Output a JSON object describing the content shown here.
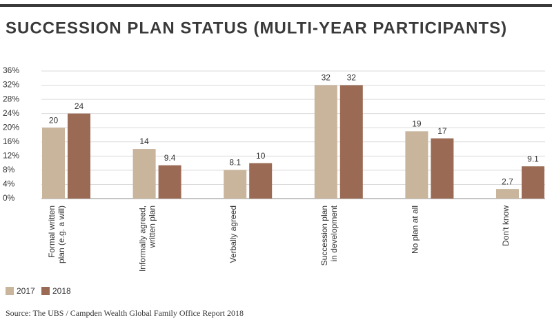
{
  "chart_data": {
    "type": "bar",
    "title": "SUCCESSION PLAN STATUS (MULTI-YEAR PARTICIPANTS)",
    "categories": [
      "Formal written\nplan (e.g. a will)",
      "Informally agreed,\nwritten plan",
      "Verbally agreed",
      "Succession plan\nin development",
      "No plan at all",
      "Don't know"
    ],
    "series": [
      {
        "name": "2017",
        "color": "#c9b59c",
        "values": [
          20,
          14,
          8.1,
          32,
          19,
          2.7
        ]
      },
      {
        "name": "2018",
        "color": "#9b6a54",
        "values": [
          24,
          9.4,
          10,
          32,
          17,
          9.1
        ]
      }
    ],
    "ylim": [
      0,
      36
    ],
    "yticks": [
      {
        "value": 0,
        "label": "0%"
      },
      {
        "value": 4,
        "label": "4%"
      },
      {
        "value": 8,
        "label": "8%"
      },
      {
        "value": 12,
        "label": "12%"
      },
      {
        "value": 16,
        "label": "16%"
      },
      {
        "value": 20,
        "label": "20%"
      },
      {
        "value": 24,
        "label": "24%"
      },
      {
        "value": 28,
        "label": "28%"
      },
      {
        "value": 32,
        "label": "32%"
      },
      {
        "value": 36,
        "label": "36%"
      }
    ],
    "grid": true,
    "source": "Source: The UBS / Campden Wealth Global Family Office Report 2018"
  }
}
